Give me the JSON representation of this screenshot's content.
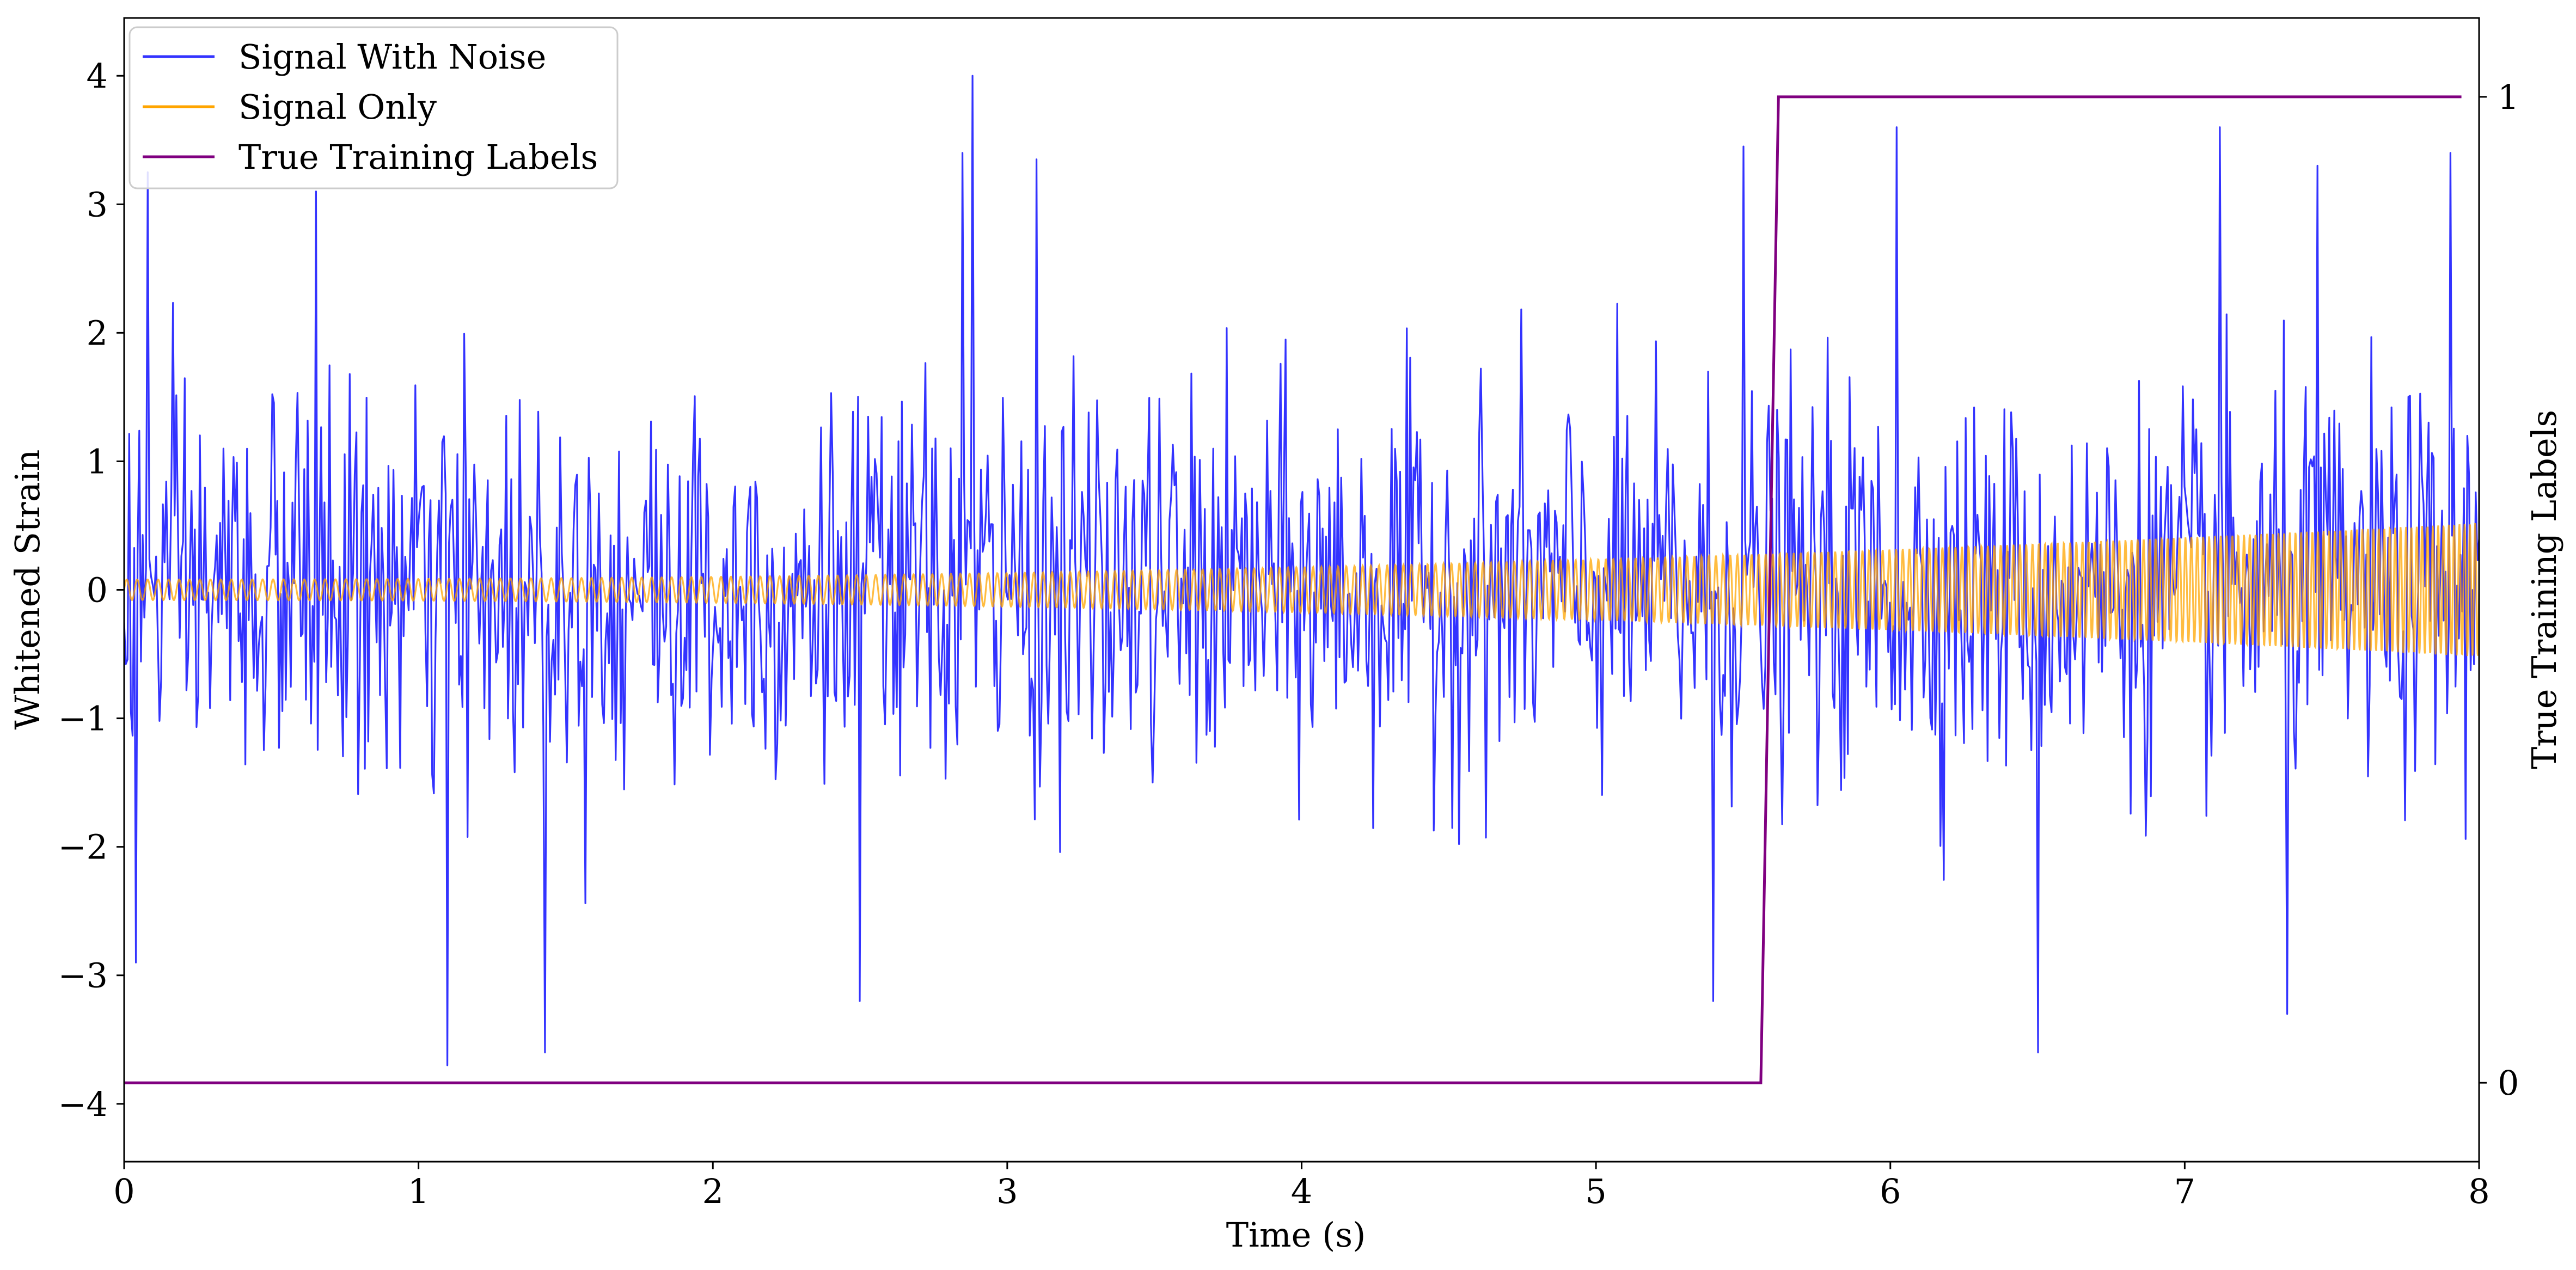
{
  "chart_data": {
    "type": "line",
    "title": "",
    "xlabel": "Time (s)",
    "ylabel": "Whitened Strain",
    "ylabel_right": "True Training Labels",
    "xlim": [
      0,
      8
    ],
    "ylim": [
      -4.45,
      4.45
    ],
    "ylim_right": [
      -0.08,
      1.08
    ],
    "x_ticks": [
      0,
      1,
      2,
      3,
      4,
      5,
      6,
      7,
      8
    ],
    "y_ticks": [
      -4,
      -3,
      -2,
      -1,
      0,
      1,
      2,
      3,
      4
    ],
    "y_tick_labels": [
      "−4",
      "−3",
      "−2",
      "−1",
      "0",
      "1",
      "2",
      "3",
      "4"
    ],
    "y_ticks_right": [
      0,
      1
    ],
    "legend_position": "top-left",
    "grid": false,
    "series": [
      {
        "name": "Signal With Noise",
        "color": "#3333ff",
        "kind": "noise",
        "sigma": 0.75,
        "x_range": [
          0,
          8
        ],
        "n_points": 1400,
        "extremes": [
          {
            "x": 0.08,
            "y": 3.25
          },
          {
            "x": 0.04,
            "y": -2.9
          },
          {
            "x": 0.65,
            "y": 3.1
          },
          {
            "x": 1.1,
            "y": -3.7
          },
          {
            "x": 1.43,
            "y": -3.6
          },
          {
            "x": 2.5,
            "y": -3.2
          },
          {
            "x": 2.85,
            "y": 3.4
          },
          {
            "x": 2.88,
            "y": 4.0
          },
          {
            "x": 3.1,
            "y": 3.35
          },
          {
            "x": 5.4,
            "y": -3.2
          },
          {
            "x": 5.5,
            "y": 3.45
          },
          {
            "x": 6.02,
            "y": 3.6
          },
          {
            "x": 6.5,
            "y": -3.6
          },
          {
            "x": 7.12,
            "y": 3.6
          },
          {
            "x": 7.35,
            "y": -3.3
          },
          {
            "x": 7.45,
            "y": 3.3
          },
          {
            "x": 7.9,
            "y": 3.4
          }
        ]
      },
      {
        "name": "Signal Only",
        "color": "#ffa500",
        "kind": "chirp",
        "amp_start": 0.08,
        "amp_end": 0.52,
        "cycles": 300,
        "x_range": [
          0,
          8
        ]
      },
      {
        "name": "True Training Labels",
        "color": "#800080",
        "axis": "right",
        "x": [
          0,
          5.56,
          5.62,
          7.94
        ],
        "y": [
          0,
          0,
          1,
          1
        ]
      }
    ]
  }
}
